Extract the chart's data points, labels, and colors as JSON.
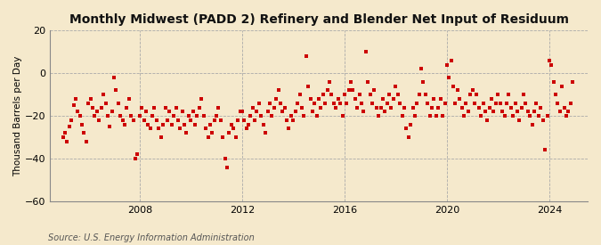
{
  "title": "Monthly Midwest (PADD 2) Refinery and Blender Net Input of Residuum",
  "ylabel": "Thousand Barrels per Day",
  "source": "Source: U.S. Energy Information Administration",
  "background_color": "#f5e9cc",
  "marker_color": "#cc0000",
  "marker_size": 9,
  "ylim": [
    -60,
    20
  ],
  "yticks": [
    -60,
    -40,
    -20,
    0,
    20
  ],
  "x_start_year": 2004.5,
  "x_end_year": 2025.5,
  "xticks": [
    2008,
    2012,
    2016,
    2020,
    2024
  ],
  "data": [
    [
      2005.0,
      -30
    ],
    [
      2005.08,
      -28
    ],
    [
      2005.17,
      -32
    ],
    [
      2005.25,
      -25
    ],
    [
      2005.33,
      -22
    ],
    [
      2005.42,
      -15
    ],
    [
      2005.5,
      -12
    ],
    [
      2005.58,
      -18
    ],
    [
      2005.67,
      -20
    ],
    [
      2005.75,
      -24
    ],
    [
      2005.83,
      -28
    ],
    [
      2005.92,
      -32
    ],
    [
      2006.0,
      -14
    ],
    [
      2006.08,
      -12
    ],
    [
      2006.17,
      -16
    ],
    [
      2006.25,
      -20
    ],
    [
      2006.33,
      -18
    ],
    [
      2006.42,
      -22
    ],
    [
      2006.5,
      -16
    ],
    [
      2006.58,
      -10
    ],
    [
      2006.67,
      -14
    ],
    [
      2006.75,
      -20
    ],
    [
      2006.83,
      -25
    ],
    [
      2006.92,
      -18
    ],
    [
      2007.0,
      -2
    ],
    [
      2007.08,
      -8
    ],
    [
      2007.17,
      -14
    ],
    [
      2007.25,
      -20
    ],
    [
      2007.33,
      -22
    ],
    [
      2007.42,
      -24
    ],
    [
      2007.5,
      -16
    ],
    [
      2007.58,
      -12
    ],
    [
      2007.67,
      -20
    ],
    [
      2007.75,
      -22
    ],
    [
      2007.83,
      -40
    ],
    [
      2007.92,
      -38
    ],
    [
      2008.0,
      -20
    ],
    [
      2008.08,
      -16
    ],
    [
      2008.17,
      -22
    ],
    [
      2008.25,
      -18
    ],
    [
      2008.33,
      -24
    ],
    [
      2008.42,
      -26
    ],
    [
      2008.5,
      -20
    ],
    [
      2008.58,
      -16
    ],
    [
      2008.67,
      -22
    ],
    [
      2008.75,
      -26
    ],
    [
      2008.83,
      -30
    ],
    [
      2008.92,
      -24
    ],
    [
      2009.0,
      -16
    ],
    [
      2009.08,
      -22
    ],
    [
      2009.17,
      -18
    ],
    [
      2009.25,
      -24
    ],
    [
      2009.33,
      -20
    ],
    [
      2009.42,
      -16
    ],
    [
      2009.5,
      -22
    ],
    [
      2009.58,
      -26
    ],
    [
      2009.67,
      -18
    ],
    [
      2009.75,
      -24
    ],
    [
      2009.83,
      -28
    ],
    [
      2009.92,
      -20
    ],
    [
      2010.0,
      -22
    ],
    [
      2010.08,
      -18
    ],
    [
      2010.17,
      -24
    ],
    [
      2010.25,
      -20
    ],
    [
      2010.33,
      -16
    ],
    [
      2010.42,
      -12
    ],
    [
      2010.5,
      -20
    ],
    [
      2010.58,
      -26
    ],
    [
      2010.67,
      -30
    ],
    [
      2010.75,
      -24
    ],
    [
      2010.83,
      -28
    ],
    [
      2010.92,
      -22
    ],
    [
      2011.0,
      -20
    ],
    [
      2011.08,
      -16
    ],
    [
      2011.17,
      -22
    ],
    [
      2011.25,
      -30
    ],
    [
      2011.33,
      -40
    ],
    [
      2011.42,
      -44
    ],
    [
      2011.5,
      -28
    ],
    [
      2011.58,
      -24
    ],
    [
      2011.67,
      -26
    ],
    [
      2011.75,
      -30
    ],
    [
      2011.83,
      -22
    ],
    [
      2011.92,
      -18
    ],
    [
      2012.0,
      -18
    ],
    [
      2012.08,
      -22
    ],
    [
      2012.17,
      -26
    ],
    [
      2012.25,
      -24
    ],
    [
      2012.33,
      -20
    ],
    [
      2012.42,
      -16
    ],
    [
      2012.5,
      -22
    ],
    [
      2012.58,
      -18
    ],
    [
      2012.67,
      -14
    ],
    [
      2012.75,
      -20
    ],
    [
      2012.83,
      -24
    ],
    [
      2012.92,
      -28
    ],
    [
      2013.0,
      -18
    ],
    [
      2013.08,
      -14
    ],
    [
      2013.17,
      -20
    ],
    [
      2013.25,
      -16
    ],
    [
      2013.33,
      -12
    ],
    [
      2013.42,
      -8
    ],
    [
      2013.5,
      -14
    ],
    [
      2013.58,
      -18
    ],
    [
      2013.67,
      -16
    ],
    [
      2013.75,
      -22
    ],
    [
      2013.83,
      -26
    ],
    [
      2013.92,
      -20
    ],
    [
      2014.0,
      -22
    ],
    [
      2014.08,
      -18
    ],
    [
      2014.17,
      -14
    ],
    [
      2014.25,
      -10
    ],
    [
      2014.33,
      -16
    ],
    [
      2014.42,
      -20
    ],
    [
      2014.5,
      8
    ],
    [
      2014.58,
      -6
    ],
    [
      2014.67,
      -12
    ],
    [
      2014.75,
      -18
    ],
    [
      2014.83,
      -14
    ],
    [
      2014.92,
      -20
    ],
    [
      2015.0,
      -12
    ],
    [
      2015.08,
      -16
    ],
    [
      2015.17,
      -10
    ],
    [
      2015.25,
      -14
    ],
    [
      2015.33,
      -8
    ],
    [
      2015.42,
      -4
    ],
    [
      2015.5,
      -10
    ],
    [
      2015.58,
      -14
    ],
    [
      2015.67,
      -16
    ],
    [
      2015.75,
      -12
    ],
    [
      2015.83,
      -14
    ],
    [
      2015.92,
      -20
    ],
    [
      2016.0,
      -10
    ],
    [
      2016.08,
      -14
    ],
    [
      2016.17,
      -8
    ],
    [
      2016.25,
      -4
    ],
    [
      2016.33,
      -8
    ],
    [
      2016.42,
      -12
    ],
    [
      2016.5,
      -16
    ],
    [
      2016.58,
      -10
    ],
    [
      2016.67,
      -14
    ],
    [
      2016.75,
      -18
    ],
    [
      2016.83,
      10
    ],
    [
      2016.92,
      -4
    ],
    [
      2017.0,
      -10
    ],
    [
      2017.08,
      -14
    ],
    [
      2017.17,
      -8
    ],
    [
      2017.25,
      -16
    ],
    [
      2017.33,
      -20
    ],
    [
      2017.42,
      -16
    ],
    [
      2017.5,
      -12
    ],
    [
      2017.58,
      -18
    ],
    [
      2017.67,
      -14
    ],
    [
      2017.75,
      -10
    ],
    [
      2017.83,
      -16
    ],
    [
      2017.92,
      -12
    ],
    [
      2018.0,
      -6
    ],
    [
      2018.08,
      -10
    ],
    [
      2018.17,
      -14
    ],
    [
      2018.25,
      -20
    ],
    [
      2018.33,
      -16
    ],
    [
      2018.42,
      -26
    ],
    [
      2018.5,
      -30
    ],
    [
      2018.58,
      -24
    ],
    [
      2018.67,
      -16
    ],
    [
      2018.75,
      -20
    ],
    [
      2018.83,
      -14
    ],
    [
      2018.92,
      -10
    ],
    [
      2019.0,
      2
    ],
    [
      2019.08,
      -4
    ],
    [
      2019.17,
      -10
    ],
    [
      2019.25,
      -14
    ],
    [
      2019.33,
      -20
    ],
    [
      2019.42,
      -16
    ],
    [
      2019.5,
      -12
    ],
    [
      2019.58,
      -20
    ],
    [
      2019.67,
      -16
    ],
    [
      2019.75,
      -12
    ],
    [
      2019.83,
      -20
    ],
    [
      2019.92,
      -14
    ],
    [
      2020.0,
      4
    ],
    [
      2020.08,
      -2
    ],
    [
      2020.17,
      6
    ],
    [
      2020.25,
      -6
    ],
    [
      2020.33,
      -14
    ],
    [
      2020.42,
      -8
    ],
    [
      2020.5,
      -12
    ],
    [
      2020.58,
      -16
    ],
    [
      2020.67,
      -20
    ],
    [
      2020.75,
      -14
    ],
    [
      2020.83,
      -18
    ],
    [
      2020.92,
      -10
    ],
    [
      2021.0,
      -8
    ],
    [
      2021.08,
      -14
    ],
    [
      2021.17,
      -10
    ],
    [
      2021.25,
      -16
    ],
    [
      2021.33,
      -20
    ],
    [
      2021.42,
      -14
    ],
    [
      2021.5,
      -18
    ],
    [
      2021.58,
      -22
    ],
    [
      2021.67,
      -16
    ],
    [
      2021.75,
      -12
    ],
    [
      2021.83,
      -18
    ],
    [
      2021.92,
      -14
    ],
    [
      2022.0,
      -10
    ],
    [
      2022.08,
      -14
    ],
    [
      2022.17,
      -18
    ],
    [
      2022.25,
      -20
    ],
    [
      2022.33,
      -14
    ],
    [
      2022.42,
      -10
    ],
    [
      2022.5,
      -16
    ],
    [
      2022.58,
      -20
    ],
    [
      2022.67,
      -14
    ],
    [
      2022.75,
      -18
    ],
    [
      2022.83,
      -22
    ],
    [
      2022.92,
      -16
    ],
    [
      2023.0,
      -10
    ],
    [
      2023.08,
      -14
    ],
    [
      2023.17,
      -18
    ],
    [
      2023.25,
      -20
    ],
    [
      2023.33,
      -24
    ],
    [
      2023.42,
      -18
    ],
    [
      2023.5,
      -14
    ],
    [
      2023.58,
      -20
    ],
    [
      2023.67,
      -16
    ],
    [
      2023.75,
      -22
    ],
    [
      2023.83,
      -36
    ],
    [
      2023.92,
      -20
    ],
    [
      2024.0,
      6
    ],
    [
      2024.08,
      4
    ],
    [
      2024.17,
      -4
    ],
    [
      2024.25,
      -10
    ],
    [
      2024.33,
      -14
    ],
    [
      2024.42,
      -18
    ],
    [
      2024.5,
      -6
    ],
    [
      2024.58,
      -16
    ],
    [
      2024.67,
      -20
    ],
    [
      2024.75,
      -18
    ],
    [
      2024.83,
      -14
    ],
    [
      2024.92,
      -4
    ]
  ]
}
